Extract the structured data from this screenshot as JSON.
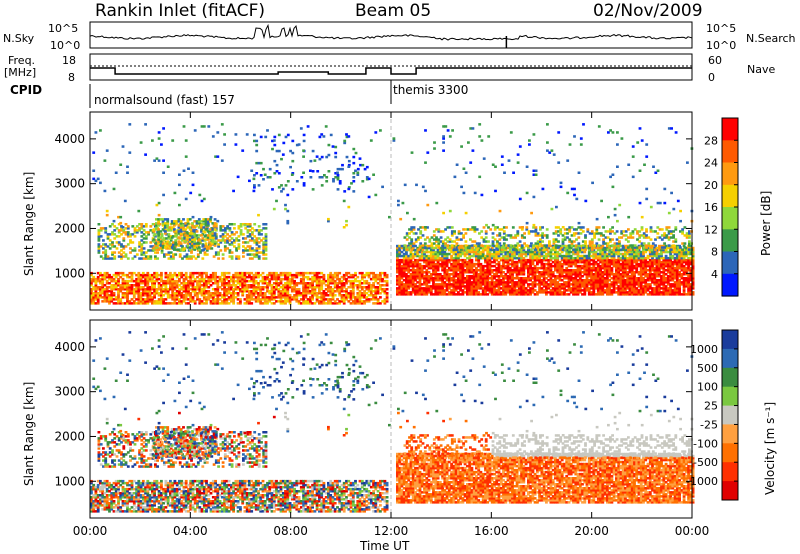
{
  "header": {
    "station": "Rankin Inlet (fitACF)",
    "beam": "Beam 05",
    "date": "02/Nov/2009"
  },
  "labels": {
    "nsky": "N.Sky",
    "nsky_ticks": [
      "10^5",
      "10^0"
    ],
    "nsearch": "N.Search",
    "nsearch_ticks": [
      "10^5",
      "10^0"
    ],
    "freq": "Freq.",
    "freq_unit": "[MHz]",
    "freq_ticks": [
      "18",
      "8"
    ],
    "nave": "Nave",
    "nave_ticks": [
      "60",
      "0"
    ],
    "cpid": "CPID",
    "cpid_segments": [
      "normalsound (fast) 157",
      "themis 3300"
    ],
    "ylabel": "Slant Range [km]",
    "xlabel": "Time UT",
    "power_label": "Power [dB]",
    "velocity_label": "Velocity [m s⁻¹]"
  },
  "chart_data": {
    "type": "heatmap",
    "title": "Rankin Inlet (fitACF)",
    "x_ticks": [
      "00:00",
      "04:00",
      "08:00",
      "12:00",
      "16:00",
      "20:00",
      "00:00"
    ],
    "x_hours": [
      0,
      4,
      8,
      12,
      16,
      20,
      24
    ],
    "y_ticks": [
      1000,
      2000,
      3000,
      4000
    ],
    "ylim": [
      180,
      4600
    ],
    "xlim": [
      0,
      24
    ],
    "cpid_switch_hour": 12.0,
    "power_scale": {
      "label": "Power [dB]",
      "ticks": [
        "28",
        "24",
        "20",
        "16",
        "12",
        "8",
        "4"
      ],
      "colors": [
        "#ff0000",
        "#ff5a00",
        "#ff9a10",
        "#f5d000",
        "#8fd83a",
        "#3a9a48",
        "#2c66b8",
        "#0018ff"
      ]
    },
    "velocity_scale": {
      "label": "Velocity [m s⁻¹]",
      "ticks": [
        "1000",
        "500",
        "100",
        "25",
        "-25",
        "-100",
        "-500",
        "-1000"
      ],
      "colors": [
        "#1a3c9c",
        "#2c6ab4",
        "#3a8c40",
        "#7ac840",
        "#c8c8c0",
        "#ffa040",
        "#ff7000",
        "#ff3000",
        "#e00000"
      ]
    }
  }
}
